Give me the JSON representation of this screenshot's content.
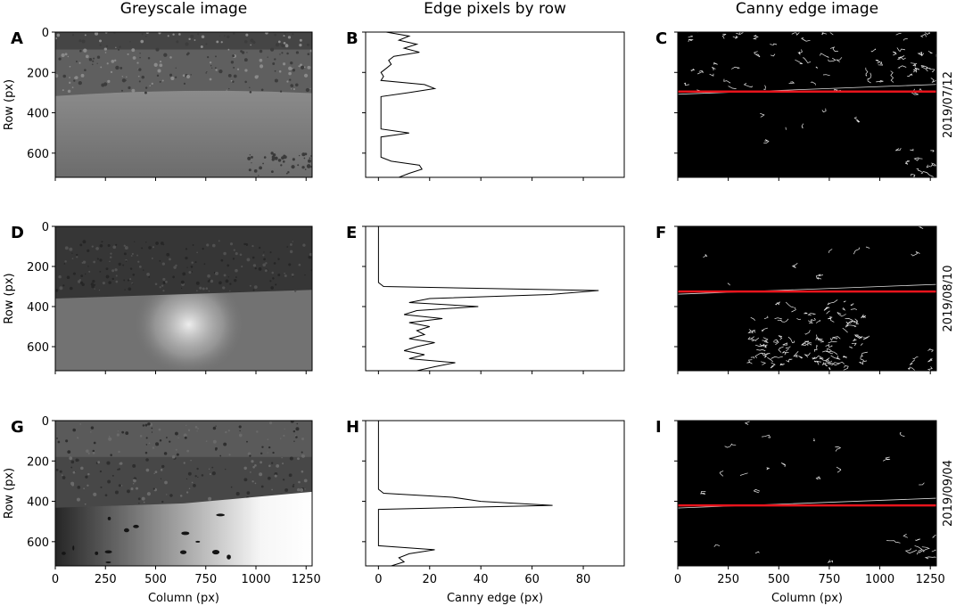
{
  "column_titles": [
    "Greyscale image",
    "Edge pixels by row",
    "Canny edge image"
  ],
  "chart_data": [
    {
      "type": "image",
      "panel": "A",
      "ylabel": "Row (px)",
      "xlim": [
        0,
        1280
      ],
      "ylim": [
        720,
        0
      ],
      "xticks": [
        0,
        250,
        500,
        750,
        1000,
        1250
      ],
      "yticks": [
        0,
        200,
        400,
        600
      ],
      "tick_labels": {
        "x": false,
        "y": true
      }
    },
    {
      "type": "line",
      "panel": "B",
      "color": "#000000",
      "xlim": [
        -5,
        96
      ],
      "ylim": [
        720,
        0
      ],
      "xticks": [
        0,
        20,
        40,
        60,
        80
      ],
      "yticks": [
        0,
        200,
        400,
        600
      ],
      "tick_labels": {
        "x": false,
        "y": false
      },
      "y": [
        0,
        20,
        40,
        60,
        80,
        100,
        120,
        140,
        160,
        180,
        200,
        220,
        240,
        260,
        280,
        300,
        320,
        340,
        360,
        380,
        400,
        420,
        440,
        460,
        480,
        500,
        520,
        540,
        560,
        580,
        600,
        620,
        640,
        660,
        680,
        700,
        720
      ],
      "values": [
        3,
        12,
        8,
        15,
        10,
        16,
        6,
        4,
        5,
        3,
        1,
        2,
        1,
        18,
        22,
        12,
        1,
        1,
        1,
        1,
        1,
        1,
        1,
        1,
        1,
        12,
        1,
        1,
        1,
        1,
        1,
        1,
        5,
        16,
        17,
        12,
        8
      ]
    },
    {
      "type": "edge_image",
      "panel": "C",
      "side_label": "2019/07/12",
      "edge_row": 295,
      "color": "#e8141c",
      "xlim": [
        0,
        1280
      ],
      "ylim": [
        720,
        0
      ],
      "xticks": [
        0,
        250,
        500,
        750,
        1000,
        1250
      ],
      "yticks": [
        0,
        200,
        400,
        600
      ],
      "tick_labels": {
        "x": false,
        "y": false
      }
    },
    {
      "type": "image",
      "panel": "D",
      "ylabel": "Row (px)",
      "xlim": [
        0,
        1280
      ],
      "ylim": [
        720,
        0
      ],
      "xticks": [
        0,
        250,
        500,
        750,
        1000,
        1250
      ],
      "yticks": [
        0,
        200,
        400,
        600
      ],
      "tick_labels": {
        "x": false,
        "y": true
      }
    },
    {
      "type": "line",
      "panel": "E",
      "color": "#000000",
      "xlim": [
        -5,
        96
      ],
      "ylim": [
        720,
        0
      ],
      "xticks": [
        0,
        20,
        40,
        60,
        80
      ],
      "yticks": [
        0,
        200,
        400,
        600
      ],
      "tick_labels": {
        "x": false,
        "y": false
      },
      "y": [
        0,
        20,
        40,
        60,
        80,
        100,
        120,
        140,
        160,
        180,
        200,
        220,
        240,
        260,
        280,
        300,
        320,
        340,
        360,
        380,
        400,
        420,
        440,
        460,
        480,
        500,
        520,
        540,
        560,
        580,
        600,
        620,
        640,
        660,
        680,
        700,
        720
      ],
      "values": [
        0,
        0,
        0,
        0,
        0,
        0,
        0,
        0,
        0,
        0,
        0,
        0,
        0,
        0,
        0,
        2,
        86,
        67,
        20,
        12,
        39,
        15,
        10,
        25,
        12,
        20,
        15,
        18,
        12,
        22,
        15,
        10,
        18,
        12,
        30,
        22,
        15
      ]
    },
    {
      "type": "edge_image",
      "panel": "F",
      "side_label": "2019/08/10",
      "edge_row": 325,
      "color": "#e8141c",
      "xlim": [
        0,
        1280
      ],
      "ylim": [
        720,
        0
      ],
      "xticks": [
        0,
        250,
        500,
        750,
        1000,
        1250
      ],
      "yticks": [
        0,
        200,
        400,
        600
      ],
      "tick_labels": {
        "x": false,
        "y": false
      }
    },
    {
      "type": "image",
      "panel": "G",
      "ylabel": "Row (px)",
      "xlabel": "Column (px)",
      "xlim": [
        0,
        1280
      ],
      "ylim": [
        720,
        0
      ],
      "xticks": [
        0,
        250,
        500,
        750,
        1000,
        1250
      ],
      "yticks": [
        0,
        200,
        400,
        600
      ],
      "tick_labels": {
        "x": true,
        "y": true
      }
    },
    {
      "type": "line",
      "panel": "H",
      "xlabel": "Canny edge (px)",
      "color": "#000000",
      "xlim": [
        -5,
        96
      ],
      "ylim": [
        720,
        0
      ],
      "xticks": [
        0,
        20,
        40,
        60,
        80
      ],
      "yticks": [
        0,
        200,
        400,
        600
      ],
      "tick_labels": {
        "x": true,
        "y": false
      },
      "y": [
        0,
        20,
        40,
        60,
        80,
        100,
        120,
        140,
        160,
        180,
        200,
        220,
        240,
        260,
        280,
        300,
        320,
        340,
        360,
        380,
        400,
        420,
        440,
        460,
        480,
        500,
        520,
        540,
        560,
        580,
        600,
        620,
        640,
        660,
        680,
        700,
        720
      ],
      "values": [
        0,
        0,
        0,
        0,
        0,
        0,
        0,
        0,
        0,
        0,
        0,
        0,
        0,
        0,
        0,
        0,
        0,
        0,
        2,
        29,
        40,
        68,
        0,
        0,
        0,
        0,
        0,
        0,
        0,
        0,
        0,
        0,
        22,
        12,
        8,
        10,
        5
      ]
    },
    {
      "type": "edge_image",
      "panel": "I",
      "side_label": "2019/09/04",
      "xlabel": "Column (px)",
      "edge_row": 420,
      "color": "#e8141c",
      "xlim": [
        0,
        1280
      ],
      "ylim": [
        720,
        0
      ],
      "xticks": [
        0,
        250,
        500,
        750,
        1000,
        1250
      ],
      "yticks": [
        0,
        200,
        400,
        600
      ],
      "tick_labels": {
        "x": true,
        "y": false
      }
    }
  ]
}
